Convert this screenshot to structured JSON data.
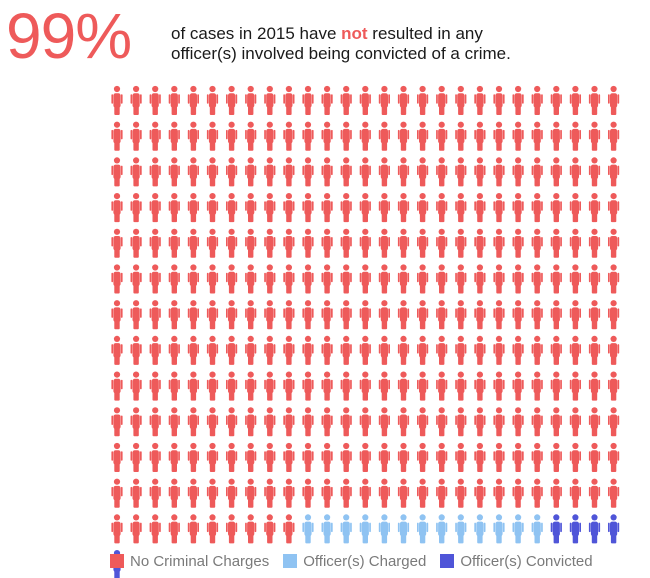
{
  "headline": {
    "stat": "99%",
    "line1_before": "of cases in 2015 have ",
    "line1_emph": "not",
    "line1_after": " resulted in any",
    "line2": "officer(s) involved being convicted of a crime."
  },
  "colors": {
    "none": "#ee5a5a",
    "charged": "#8fc3f2",
    "convicted": "#4f55d8"
  },
  "chart_data": {
    "type": "pictogram",
    "icon": "person-icon",
    "columns": 27,
    "categories": [
      {
        "key": "none",
        "name": "No Criminal Charges",
        "count": 334,
        "color": "#ee5a5a"
      },
      {
        "key": "charged",
        "name": "Officer(s) Charged",
        "count": 13,
        "color": "#8fc3f2"
      },
      {
        "key": "convicted",
        "name": "Officer(s) Convicted",
        "count": 5,
        "color": "#4f55d8"
      }
    ],
    "legend": "bottom"
  }
}
